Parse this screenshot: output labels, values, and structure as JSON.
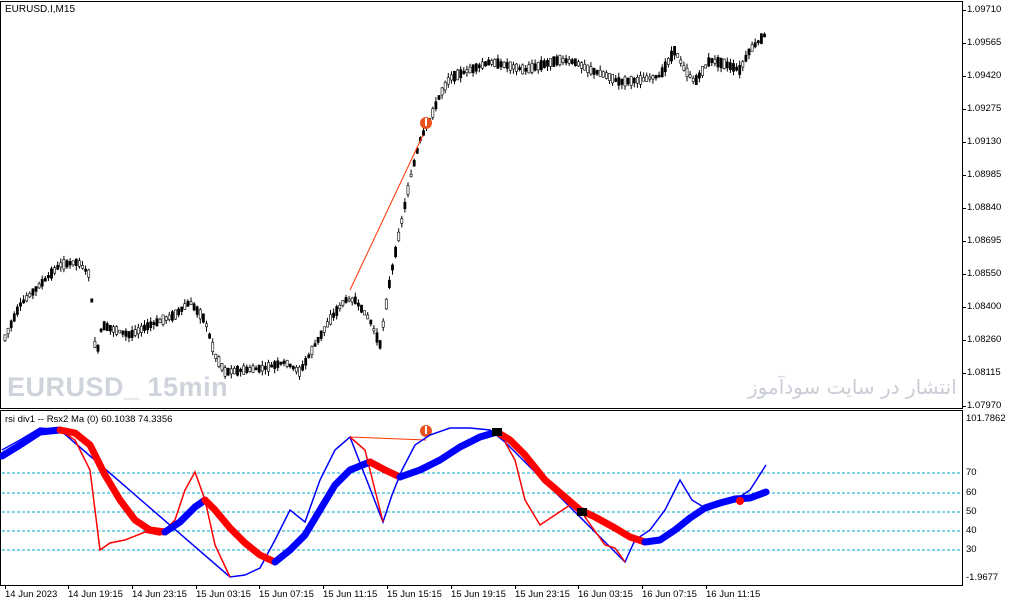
{
  "main_chart": {
    "title": "EURUSD.I,M15",
    "watermark_symbol": "EURUSD_ 15min",
    "watermark_site": "انتشار در سایت سودآموز",
    "price_axis": [
      "1.09710",
      "1.09565",
      "1.09420",
      "1.09275",
      "1.09130",
      "1.08985",
      "1.08840",
      "1.08695",
      "1.08550",
      "1.08400",
      "1.08260",
      "1.08115",
      "1.07970"
    ],
    "colors": {
      "bull": "#000000",
      "bear": "#000000",
      "divergence_line": "#ff3300",
      "arrow": "#e8501e"
    }
  },
  "indicator": {
    "title": "rsi div1 -- Rsx2 Ma (0) 60.1038 74.3356",
    "axis_top": "101.7862",
    "axis_bottom": "-1.9677",
    "levels": [
      "70",
      "60",
      "50",
      "40",
      "30"
    ],
    "colors": {
      "rsx": "#0000ff",
      "signal_up": "#0000ff",
      "signal_down": "#ff0000",
      "signal_neutral": "#000000",
      "levels": "#00aacc"
    }
  },
  "time_axis": [
    "14 Jun 2023",
    "14 Jun 19:15",
    "14 Jun 23:15",
    "15 Jun 03:15",
    "15 Jun 07:15",
    "15 Jun 11:15",
    "15 Jun 15:15",
    "15 Jun 19:15",
    "15 Jun 23:15",
    "16 Jun 03:15",
    "16 Jun 07:15",
    "16 Jun 11:15"
  ]
}
